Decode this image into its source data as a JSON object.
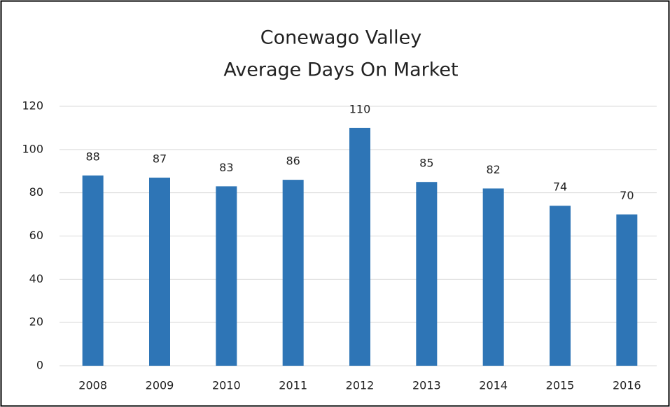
{
  "chart_data": {
    "type": "bar",
    "title": [
      "Conewago Valley",
      "Average Days On Market"
    ],
    "categories": [
      "2008",
      "2009",
      "2010",
      "2011",
      "2012",
      "2013",
      "2014",
      "2015",
      "2016"
    ],
    "values": [
      88,
      87,
      83,
      86,
      110,
      85,
      82,
      74,
      70
    ],
    "color": "#2e75b6",
    "ylim": [
      0,
      120
    ],
    "yticks": [
      0,
      20,
      40,
      60,
      80,
      100,
      120
    ],
    "grid": true
  }
}
